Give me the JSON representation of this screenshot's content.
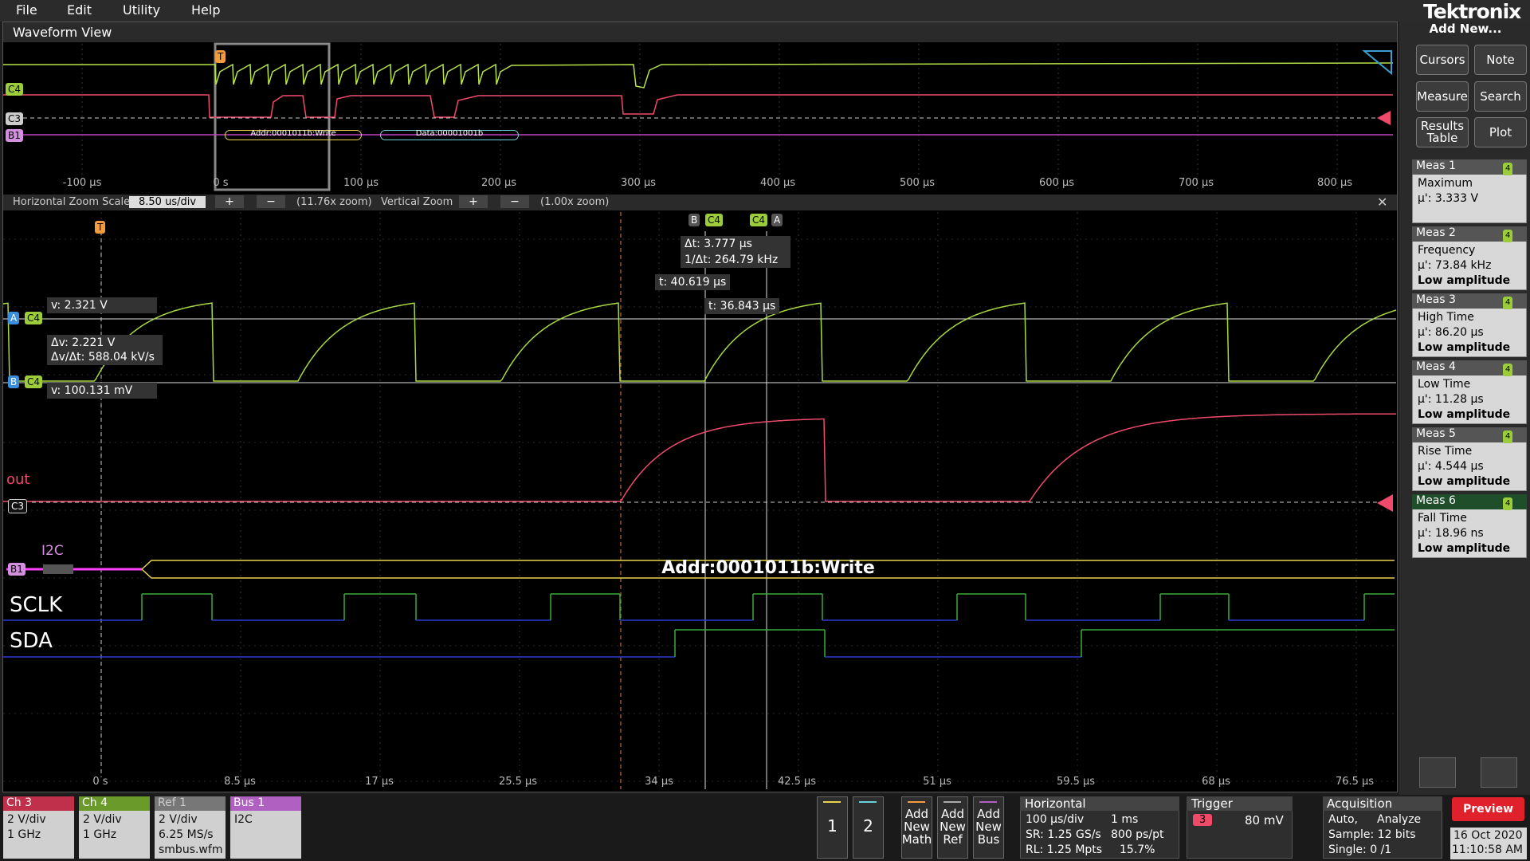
{
  "menu": [
    "File",
    "Edit",
    "Utility",
    "Help"
  ],
  "brand": "Tektronix",
  "waveform_view": {
    "title": "Waveform View",
    "overview_ticks": [
      "-100 µs",
      "0 s",
      "100 µs",
      "200 µs",
      "300 µs",
      "400 µs",
      "500 µs",
      "600 µs",
      "700 µs",
      "800 µs"
    ],
    "overview_badges": {
      "trigger": "T",
      "c4": "C4",
      "c3": "C3",
      "b1": "B1"
    },
    "overview_bus": [
      "Addr:0001011b:Write",
      "Data:00001001b"
    ],
    "zoom_bar": {
      "h_label": "Horizontal Zoom Scale",
      "h_value": "8.50 us/div",
      "plus": "+",
      "minus": "−",
      "h_zoom": "(11.76x zoom)",
      "v_label": "Vertical Zoom",
      "v_zoom": "(1.00x zoom)",
      "close": "✕"
    },
    "main_ticks": [
      "0 s",
      "8.5 µs",
      "17 µs",
      "25.5 µs",
      "34 µs",
      "42.5 µs",
      "51 µs",
      "59.5 µs",
      "68 µs",
      "76.5 µs"
    ],
    "badges": {
      "trigger": "T",
      "a": "A",
      "b": "B",
      "c4": "C4",
      "c3": "C3",
      "b1": "B1"
    },
    "cursor_readouts": {
      "dt": "Δt: 3.777 µs",
      "inv_dt": "1/Δt: 264.79 kHz",
      "t_b": "t: 40.619 µs",
      "t_a": "t: 36.843 µs",
      "v_a": "v: 2.321 V",
      "dv": "Δv: 2.221 V",
      "dv_dt": "Δv/Δt: 588.04 kV/s",
      "v_b": "v: 100.131 mV"
    },
    "labels": {
      "out": "out",
      "i2c": "I2C",
      "bus": "Addr:0001011b:Write",
      "sclk": "SCLK",
      "sda": "SDA"
    }
  },
  "side_panel": {
    "add_new": "Add New...",
    "buttons": [
      "Cursors",
      "Note",
      "Measure",
      "Search",
      "Results Table",
      "Plot"
    ],
    "measurements": [
      {
        "title": "Meas 1",
        "badge": "4",
        "name": "Maximum",
        "value": "µ': 3.333 V"
      },
      {
        "title": "Meas 2",
        "badge": "4",
        "name": "Frequency",
        "value": "µ': 73.84 kHz",
        "note": "Low amplitude"
      },
      {
        "title": "Meas 3",
        "badge": "4",
        "name": "High Time",
        "value": "µ': 86.20 µs",
        "note": "Low amplitude"
      },
      {
        "title": "Meas 4",
        "badge": "4",
        "name": "Low Time",
        "value": "µ': 11.28 µs",
        "note": "Low amplitude"
      },
      {
        "title": "Meas 5",
        "badge": "4",
        "name": "Rise Time",
        "value": "µ': 4.544 µs",
        "note": "Low amplitude"
      },
      {
        "title": "Meas 6",
        "badge": "4",
        "name": "Fall Time",
        "value": "µ': 18.96 ns",
        "note": "Low amplitude"
      }
    ]
  },
  "bottom_bar": {
    "channels": [
      {
        "title": "Ch 3",
        "lines": [
          "2 V/div",
          "1 GHz"
        ]
      },
      {
        "title": "Ch 4",
        "lines": [
          "2 V/div",
          "1 GHz"
        ]
      },
      {
        "title": "Ref 1",
        "lines": [
          "2 V/div",
          "6.25 MS/s",
          "smbus.wfm"
        ]
      },
      {
        "title": "Bus 1",
        "lines": [
          "I2C"
        ]
      }
    ],
    "slots": [
      "1",
      "2"
    ],
    "add_new": [
      "Add New Math",
      "Add New Ref",
      "Add New Bus"
    ],
    "horizontal": {
      "title": "Horizontal",
      "scale": "100 µs/div",
      "position": "1 ms",
      "sr": "SR: 1.25 GS/s",
      "pt": "800 ps/pt",
      "rl": "RL: 1.25 Mpts",
      "pct": "15.7%"
    },
    "trigger": {
      "title": "Trigger",
      "source": "3",
      "level": "80 mV"
    },
    "acquisition": {
      "title": "Acquisition",
      "mode": "Auto,",
      "analyze": "Analyze",
      "sample": "Sample: 12 bits",
      "single": "Single: 0 /1"
    },
    "preview": "Preview",
    "date": "16 Oct 2020",
    "time": "11:10:58 AM"
  }
}
